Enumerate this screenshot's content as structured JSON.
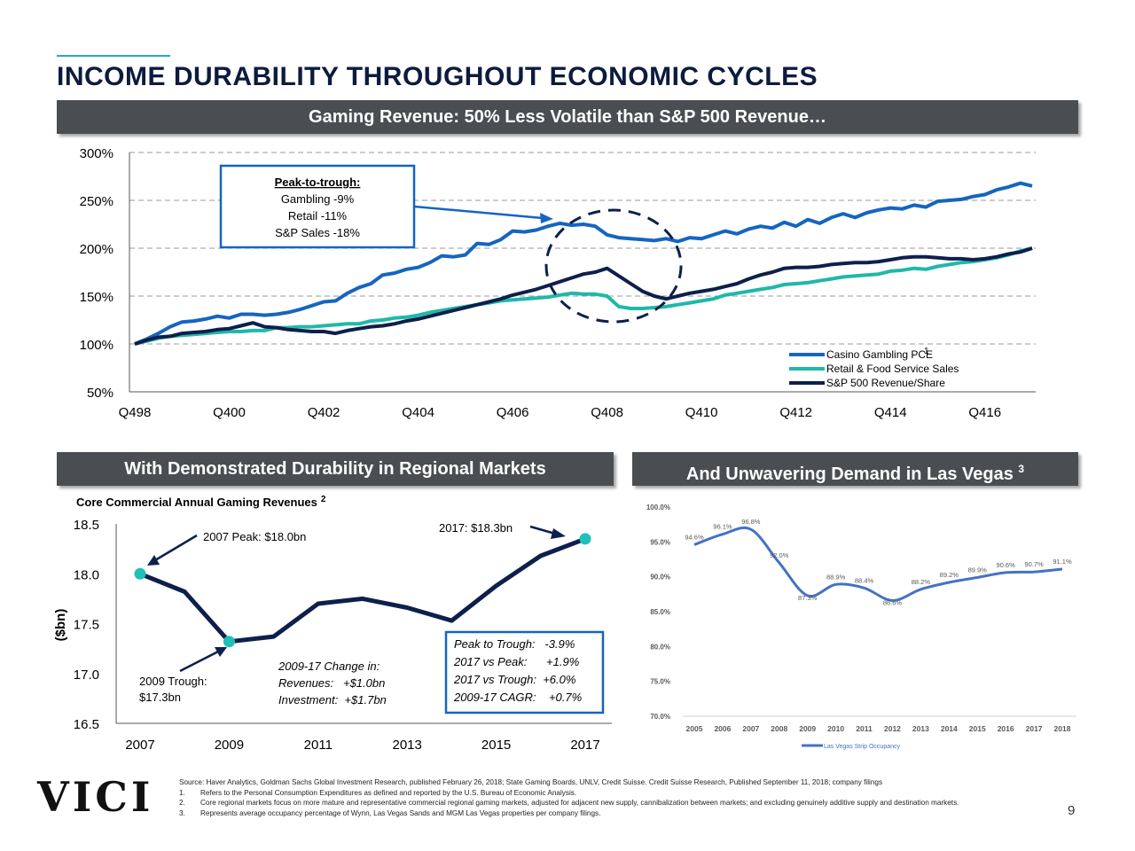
{
  "page": {
    "title": "INCOME DURABILITY THROUGHOUT ECONOMIC CYCLES",
    "logo": "VICI",
    "page_number": "9"
  },
  "banners": {
    "top": "Gaming Revenue: 50% Less Volatile than S&P 500 Revenue…",
    "regional": "With Demonstrated Durability in Regional Markets",
    "vegas": "And Unwavering Demand in Las Vegas",
    "vegas_sup": "3"
  },
  "colors": {
    "gambling": "#1565c0",
    "retail": "#20b8a8",
    "sp500": "#0d1f4c",
    "regional": "#0d1f4c",
    "marker": "#1fc0b8",
    "vegas": "#4472c4",
    "banner": "#4a4d52",
    "title": "#0d1b3e"
  },
  "chart_data": [
    {
      "id": "income_durability",
      "type": "line",
      "title": "Gaming Revenue: 50% Less Volatile than S&P 500 Revenue…",
      "x_tick_labels": [
        "Q498",
        "Q400",
        "Q402",
        "Q404",
        "Q406",
        "Q408",
        "Q410",
        "Q412",
        "Q414",
        "Q416"
      ],
      "x_count": 77,
      "ylim": [
        50,
        300
      ],
      "y_ticks": [
        50,
        100,
        150,
        200,
        250,
        300
      ],
      "y_tick_labels": [
        "50%",
        "100%",
        "150%",
        "200%",
        "250%",
        "300%"
      ],
      "grid": "dashed",
      "legend": "bottom-right",
      "annotation": {
        "heading": "Peak-to-trough:",
        "lines": [
          "Gambling -9%",
          "Retail -11%",
          "S&P Sales -18%"
        ]
      },
      "series": [
        {
          "name": "Casino Gambling PCE",
          "footnote": "1",
          "values": [
            100,
            105,
            111,
            118,
            123,
            124,
            126,
            129,
            127,
            131,
            131,
            130,
            131,
            133,
            136,
            140,
            144,
            145,
            153,
            159,
            163,
            172,
            174,
            178,
            180,
            185,
            192,
            191,
            193,
            205,
            204,
            209,
            218,
            217,
            219,
            223,
            226,
            224,
            225,
            223,
            214,
            211,
            210,
            209,
            208,
            210,
            207,
            211,
            210,
            214,
            218,
            215,
            220,
            223,
            221,
            227,
            223,
            230,
            226,
            232,
            236,
            232,
            237,
            240,
            242,
            241,
            245,
            243,
            249,
            250,
            251,
            254,
            256,
            261,
            264,
            268,
            265
          ]
        },
        {
          "name": "Retail & Food Service Sales",
          "values": [
            100,
            103,
            106,
            108,
            109,
            110,
            111,
            112,
            113,
            113,
            114,
            114,
            117,
            117,
            118,
            118,
            119,
            120,
            121,
            121,
            124,
            125,
            127,
            128,
            130,
            133,
            135,
            137,
            139,
            141,
            143,
            145,
            146,
            147,
            148,
            149,
            151,
            153,
            152,
            152,
            150,
            139,
            137,
            137,
            138,
            139,
            141,
            143,
            145,
            147,
            151,
            153,
            155,
            157,
            159,
            162,
            163,
            164,
            166,
            168,
            170,
            171,
            172,
            173,
            176,
            177,
            179,
            178,
            181,
            183,
            185,
            186,
            188,
            190,
            193,
            197,
            200
          ]
        },
        {
          "name": "S&P 500 Revenue/Share",
          "values": [
            100,
            104,
            107,
            108,
            111,
            112,
            113,
            115,
            116,
            119,
            122,
            118,
            117,
            115,
            114,
            113,
            113,
            111,
            114,
            116,
            118,
            119,
            121,
            124,
            126,
            129,
            132,
            135,
            138,
            141,
            144,
            147,
            151,
            154,
            157,
            161,
            165,
            169,
            173,
            175,
            179,
            171,
            163,
            155,
            150,
            147,
            150,
            153,
            155,
            157,
            160,
            163,
            168,
            172,
            175,
            179,
            180,
            180,
            181,
            183,
            184,
            185,
            185,
            186,
            188,
            190,
            191,
            191,
            190,
            189,
            189,
            188,
            189,
            191,
            194,
            196,
            200
          ]
        }
      ]
    },
    {
      "id": "regional_revenues",
      "type": "line",
      "title": "Core Commercial Annual Gaming Revenues",
      "title_sup": "2",
      "ylabel": "($bn)",
      "x": [
        2007,
        2008,
        2009,
        2010,
        2011,
        2012,
        2013,
        2014,
        2015,
        2016,
        2017
      ],
      "x_tick_labels": [
        "2007",
        "2009",
        "2011",
        "2013",
        "2015",
        "2017"
      ],
      "ylim": [
        16.5,
        18.5
      ],
      "y_tick_labels": [
        "16.5",
        "17.0",
        "17.5",
        "18.0",
        "18.5"
      ],
      "series": [
        {
          "name": "Core Commercial Annual Gaming Revenues",
          "values": [
            18.0,
            17.82,
            17.32,
            17.37,
            17.7,
            17.75,
            17.66,
            17.53,
            17.88,
            18.18,
            18.35
          ]
        }
      ],
      "highlights": [
        {
          "x": 2007,
          "value": 18.0
        },
        {
          "x": 2009,
          "value": 17.32
        },
        {
          "x": 2017,
          "value": 18.35
        }
      ],
      "annotations": {
        "peak_2007": "2007 Peak: $18.0bn",
        "peak_2017": "2017: $18.3bn",
        "trough_2009_line1": "2009 Trough:",
        "trough_2009_line2": "$17.3bn",
        "change_title": "2009-17 Change in:",
        "change_revenues": "Revenues:   +$1.0bn",
        "change_investment": "Investment:  +$1.7bn",
        "box_lines": [
          "Peak to Trough:   -3.9%",
          "2017 vs Peak:      +1.9%",
          "2017 vs Trough:  +6.0%",
          "2009-17 CAGR:    +0.7%"
        ]
      }
    },
    {
      "id": "vegas_occupancy",
      "type": "line",
      "categories": [
        "2005",
        "2006",
        "2007",
        "2008",
        "2009",
        "2010",
        "2011",
        "2012",
        "2013",
        "2014",
        "2015",
        "2016",
        "2017",
        "2018"
      ],
      "ylim": [
        70,
        100
      ],
      "y_tick_labels": [
        "70.0%",
        "75.0%",
        "80.0%",
        "85.0%",
        "90.0%",
        "95.0%",
        "100.0%"
      ],
      "legend": "bottom-center",
      "series": [
        {
          "name": "Las Vegas Strip Occupancy",
          "values": [
            94.6,
            96.1,
            96.8,
            92.0,
            87.3,
            88.9,
            88.4,
            86.6,
            88.2,
            89.2,
            89.9,
            90.6,
            90.7,
            91.1
          ],
          "labels": [
            "94.6%",
            "96.1%",
            "96.8%",
            "92.0%",
            "87.3%",
            "88.9%",
            "88.4%",
            "86.6%",
            "88.2%",
            "89.2%",
            "89.9%",
            "90.6%",
            "90.7%",
            "91.1%"
          ]
        }
      ]
    }
  ],
  "footnotes": {
    "source": "Source: Haver Analytics, Goldman Sachs Global Investment Research, published February 26, 2018; State Gaming Boards, UNLV, Credit Suisse. Credit Suisse Research, Published September 11, 2018; company filings",
    "n1_num": "1.",
    "n1": "Refers to the Personal Consumption Expenditures as defined and reported by the U.S. Bureau of Economic Analysis.",
    "n2_num": "2.",
    "n2": "Core regional markets focus on more mature and representative commercial regional gaming markets, adjusted for adjacent new supply, cannibalization between markets; and excluding genuinely additive supply and destination markets.",
    "n3_num": "3.",
    "n3": "Represents average occupancy percentage of Wynn, Las Vegas Sands and MGM Las Vegas properties per company filings."
  }
}
